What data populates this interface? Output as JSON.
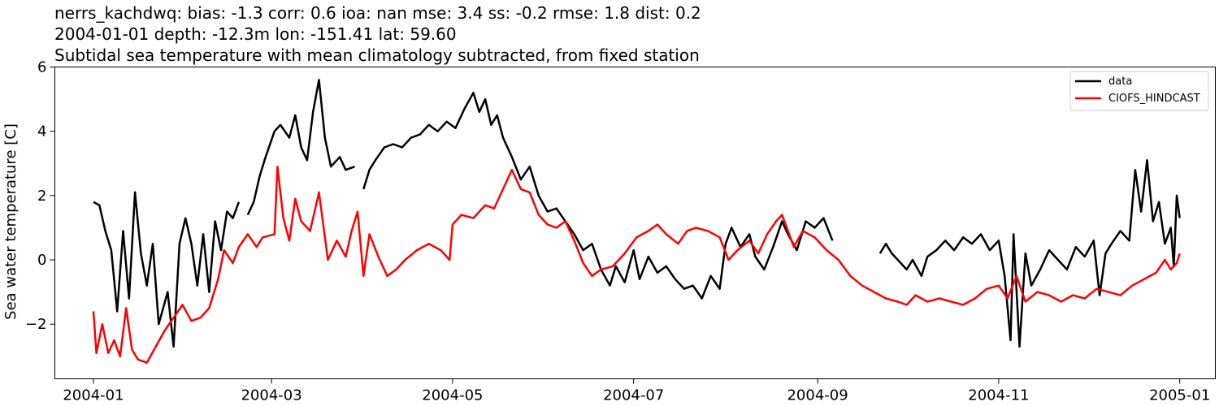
{
  "chart_data": {
    "type": "line",
    "title_lines": [
      "nerrs_kachdwq: bias: -1.3  corr: 0.6  ioa: nan  mse: 3.4  ss: -0.2  rmse: 1.8  dist: 0.2",
      "2004-01-01 depth: -12.3m lon: -151.41 lat: 59.60",
      "Subtidal sea temperature with mean climatology subtracted, from fixed station"
    ],
    "xlabel": "",
    "ylabel": "Sea water temperature [C]",
    "xlim": [
      "2003-12-19",
      "2005-01-13"
    ],
    "ylim": [
      -3.7,
      6.0
    ],
    "x_ticks": [
      "2004-01",
      "2004-03",
      "2004-05",
      "2004-07",
      "2004-09",
      "2004-11",
      "2005-01"
    ],
    "y_ticks": [
      6,
      4,
      2,
      0,
      -2
    ],
    "y_tick_labels": [
      "6",
      "4",
      "2",
      "0",
      "−2"
    ],
    "grid": false,
    "legend_position": "top-right",
    "series": [
      {
        "name": "data",
        "color": "#000000",
        "points": [
          [
            "2004-01-01",
            1.8
          ],
          [
            "2004-01-03",
            1.7
          ],
          [
            "2004-01-05",
            0.9
          ],
          [
            "2004-01-07",
            0.3
          ],
          [
            "2004-01-09",
            -1.6
          ],
          [
            "2004-01-11",
            0.9
          ],
          [
            "2004-01-13",
            -1.2
          ],
          [
            "2004-01-15",
            2.1
          ],
          [
            "2004-01-17",
            0.2
          ],
          [
            "2004-01-19",
            -0.8
          ],
          [
            "2004-01-21",
            0.5
          ],
          [
            "2004-01-23",
            -2.0
          ],
          [
            "2004-01-26",
            -1.0
          ],
          [
            "2004-01-28",
            -2.7
          ],
          [
            "2004-01-30",
            0.5
          ],
          [
            "2004-02-01",
            1.3
          ],
          [
            "2004-02-03",
            0.5
          ],
          [
            "2004-02-05",
            -0.8
          ],
          [
            "2004-02-07",
            0.8
          ],
          [
            "2004-02-09",
            -1.0
          ],
          [
            "2004-02-11",
            1.2
          ],
          [
            "2004-02-13",
            0.3
          ],
          [
            "2004-02-15",
            1.5
          ],
          [
            "2004-02-17",
            1.3
          ],
          [
            "2004-02-19",
            1.8
          ],
          null,
          [
            "2004-02-22",
            1.4
          ],
          [
            "2004-02-24",
            1.8
          ],
          [
            "2004-02-26",
            2.6
          ],
          [
            "2004-02-28",
            3.2
          ],
          [
            "2004-03-02",
            4.0
          ],
          [
            "2004-03-04",
            4.2
          ],
          [
            "2004-03-07",
            3.8
          ],
          [
            "2004-03-09",
            4.5
          ],
          [
            "2004-03-11",
            3.5
          ],
          [
            "2004-03-13",
            3.1
          ],
          [
            "2004-03-15",
            4.6
          ],
          [
            "2004-03-17",
            5.6
          ],
          [
            "2004-03-19",
            3.8
          ],
          [
            "2004-03-21",
            2.9
          ],
          [
            "2004-03-24",
            3.2
          ],
          [
            "2004-03-26",
            2.8
          ],
          [
            "2004-03-29",
            2.9
          ],
          null,
          [
            "2004-04-01",
            2.2
          ],
          [
            "2004-04-03",
            2.8
          ],
          [
            "2004-04-05",
            3.1
          ],
          [
            "2004-04-08",
            3.5
          ],
          [
            "2004-04-11",
            3.6
          ],
          [
            "2004-04-14",
            3.5
          ],
          [
            "2004-04-17",
            3.8
          ],
          [
            "2004-04-20",
            3.9
          ],
          [
            "2004-04-23",
            4.2
          ],
          [
            "2004-04-26",
            4.0
          ],
          [
            "2004-04-29",
            4.3
          ],
          [
            "2004-05-02",
            4.1
          ],
          [
            "2004-05-05",
            4.7
          ],
          [
            "2004-05-08",
            5.2
          ],
          [
            "2004-05-10",
            4.6
          ],
          [
            "2004-05-12",
            5.0
          ],
          [
            "2004-05-14",
            4.2
          ],
          [
            "2004-05-16",
            4.5
          ],
          [
            "2004-05-18",
            3.8
          ],
          [
            "2004-05-21",
            3.2
          ],
          [
            "2004-05-24",
            2.5
          ],
          [
            "2004-05-27",
            2.9
          ],
          [
            "2004-05-30",
            2.0
          ],
          [
            "2004-06-02",
            1.5
          ],
          [
            "2004-06-05",
            1.6
          ],
          [
            "2004-06-08",
            1.2
          ],
          [
            "2004-06-11",
            0.8
          ],
          [
            "2004-06-14",
            0.3
          ],
          [
            "2004-06-17",
            0.5
          ],
          [
            "2004-06-20",
            -0.3
          ],
          [
            "2004-06-23",
            -0.8
          ],
          [
            "2004-06-25",
            -0.2
          ],
          [
            "2004-06-28",
            -0.7
          ],
          [
            "2004-07-01",
            0.3
          ],
          [
            "2004-07-03",
            -0.6
          ],
          [
            "2004-07-06",
            0.1
          ],
          [
            "2004-07-09",
            -0.4
          ],
          [
            "2004-07-12",
            -0.2
          ],
          [
            "2004-07-15",
            -0.6
          ],
          [
            "2004-07-18",
            -0.9
          ],
          [
            "2004-07-21",
            -0.8
          ],
          [
            "2004-07-24",
            -1.2
          ],
          [
            "2004-07-27",
            -0.5
          ],
          [
            "2004-07-30",
            -0.9
          ],
          [
            "2004-08-01",
            0.5
          ],
          [
            "2004-08-03",
            1.0
          ],
          [
            "2004-08-06",
            0.4
          ],
          [
            "2004-08-09",
            0.8
          ],
          [
            "2004-08-11",
            0.1
          ],
          [
            "2004-08-14",
            -0.3
          ],
          [
            "2004-08-17",
            0.4
          ],
          [
            "2004-08-20",
            1.2
          ],
          [
            "2004-08-22",
            0.8
          ],
          [
            "2004-08-25",
            0.3
          ],
          [
            "2004-08-28",
            1.2
          ],
          [
            "2004-08-31",
            1.0
          ],
          [
            "2004-09-03",
            1.3
          ],
          [
            "2004-09-06",
            0.6
          ],
          null,
          [
            "2004-09-22",
            0.2
          ],
          [
            "2004-09-24",
            0.5
          ],
          [
            "2004-09-26",
            0.2
          ],
          [
            "2004-09-28",
            0.0
          ],
          [
            "2004-10-01",
            -0.3
          ],
          [
            "2004-10-03",
            0.0
          ],
          [
            "2004-10-06",
            -0.5
          ],
          [
            "2004-10-08",
            0.1
          ],
          [
            "2004-10-11",
            0.3
          ],
          [
            "2004-10-14",
            0.6
          ],
          [
            "2004-10-17",
            0.3
          ],
          [
            "2004-10-20",
            0.7
          ],
          [
            "2004-10-23",
            0.5
          ],
          [
            "2004-10-26",
            0.8
          ],
          [
            "2004-10-29",
            0.3
          ],
          [
            "2004-11-01",
            0.6
          ],
          [
            "2004-11-03",
            -0.5
          ],
          [
            "2004-11-05",
            -2.5
          ],
          [
            "2004-11-06",
            0.8
          ],
          [
            "2004-11-08",
            -2.7
          ],
          [
            "2004-11-10",
            0.2
          ],
          [
            "2004-11-12",
            -0.8
          ],
          [
            "2004-11-15",
            -0.3
          ],
          [
            "2004-11-18",
            0.3
          ],
          [
            "2004-11-21",
            0.0
          ],
          [
            "2004-11-24",
            -0.3
          ],
          [
            "2004-11-27",
            0.4
          ],
          [
            "2004-11-30",
            0.1
          ],
          [
            "2004-12-03",
            0.6
          ],
          [
            "2004-12-05",
            -1.1
          ],
          [
            "2004-12-07",
            0.2
          ],
          [
            "2004-12-09",
            0.5
          ],
          [
            "2004-12-12",
            0.9
          ],
          [
            "2004-12-15",
            0.6
          ],
          [
            "2004-12-17",
            2.8
          ],
          [
            "2004-12-19",
            1.5
          ],
          [
            "2004-12-21",
            3.1
          ],
          [
            "2004-12-23",
            1.2
          ],
          [
            "2004-12-25",
            1.8
          ],
          [
            "2004-12-27",
            0.5
          ],
          [
            "2004-12-29",
            1.0
          ],
          [
            "2004-12-30",
            -0.2
          ],
          [
            "2004-12-31",
            2.0
          ],
          [
            "2005-01-01",
            1.3
          ]
        ]
      },
      {
        "name": "CIOFS_HINDCAST",
        "color": "#ff0000",
        "points": [
          [
            "2004-01-01",
            -1.6
          ],
          [
            "2004-01-02",
            -2.9
          ],
          [
            "2004-01-04",
            -2.0
          ],
          [
            "2004-01-06",
            -2.9
          ],
          [
            "2004-01-08",
            -2.5
          ],
          [
            "2004-01-10",
            -3.0
          ],
          [
            "2004-01-12",
            -1.5
          ],
          [
            "2004-01-14",
            -2.8
          ],
          [
            "2004-01-16",
            -3.1
          ],
          [
            "2004-01-19",
            -3.2
          ],
          [
            "2004-01-22",
            -2.7
          ],
          [
            "2004-01-25",
            -2.2
          ],
          [
            "2004-01-28",
            -1.8
          ],
          [
            "2004-01-31",
            -1.4
          ],
          [
            "2004-02-03",
            -1.9
          ],
          [
            "2004-02-06",
            -1.8
          ],
          [
            "2004-02-09",
            -1.5
          ],
          [
            "2004-02-12",
            -0.6
          ],
          [
            "2004-02-14",
            0.3
          ],
          [
            "2004-02-17",
            -0.1
          ],
          [
            "2004-02-19",
            0.4
          ],
          [
            "2004-02-22",
            0.8
          ],
          [
            "2004-02-25",
            0.4
          ],
          [
            "2004-02-27",
            0.7
          ],
          [
            "2004-03-02",
            0.8
          ],
          [
            "2004-03-03",
            2.9
          ],
          [
            "2004-03-05",
            1.3
          ],
          [
            "2004-03-07",
            0.6
          ],
          [
            "2004-03-09",
            1.9
          ],
          [
            "2004-03-11",
            1.2
          ],
          [
            "2004-03-14",
            0.9
          ],
          [
            "2004-03-17",
            2.1
          ],
          [
            "2004-03-20",
            0.0
          ],
          [
            "2004-03-23",
            0.6
          ],
          [
            "2004-03-26",
            0.1
          ],
          [
            "2004-03-28",
            0.9
          ],
          [
            "2004-03-30",
            1.5
          ],
          [
            "2004-04-01",
            -0.5
          ],
          [
            "2004-04-03",
            0.8
          ],
          [
            "2004-04-06",
            0.1
          ],
          [
            "2004-04-09",
            -0.5
          ],
          [
            "2004-04-12",
            -0.3
          ],
          [
            "2004-04-15",
            0.0
          ],
          [
            "2004-04-19",
            0.3
          ],
          [
            "2004-04-23",
            0.5
          ],
          [
            "2004-04-27",
            0.3
          ],
          [
            "2004-04-30",
            0.0
          ],
          [
            "2004-05-01",
            1.1
          ],
          [
            "2004-05-04",
            1.4
          ],
          [
            "2004-05-08",
            1.3
          ],
          [
            "2004-05-12",
            1.7
          ],
          [
            "2004-05-15",
            1.6
          ],
          [
            "2004-05-18",
            2.2
          ],
          [
            "2004-05-21",
            2.8
          ],
          [
            "2004-05-24",
            2.2
          ],
          [
            "2004-05-27",
            2.1
          ],
          [
            "2004-05-30",
            1.4
          ],
          [
            "2004-06-02",
            1.1
          ],
          [
            "2004-06-05",
            1.0
          ],
          [
            "2004-06-08",
            1.2
          ],
          [
            "2004-06-11",
            0.6
          ],
          [
            "2004-06-14",
            -0.1
          ],
          [
            "2004-06-17",
            -0.5
          ],
          [
            "2004-06-20",
            -0.3
          ],
          [
            "2004-06-24",
            -0.2
          ],
          [
            "2004-06-28",
            0.2
          ],
          [
            "2004-07-02",
            0.7
          ],
          [
            "2004-07-06",
            0.9
          ],
          [
            "2004-07-09",
            1.1
          ],
          [
            "2004-07-12",
            0.8
          ],
          [
            "2004-07-16",
            0.5
          ],
          [
            "2004-07-19",
            0.9
          ],
          [
            "2004-07-22",
            1.0
          ],
          [
            "2004-07-26",
            0.9
          ],
          [
            "2004-07-30",
            0.7
          ],
          [
            "2004-08-02",
            0.0
          ],
          [
            "2004-08-05",
            0.3
          ],
          [
            "2004-08-09",
            0.6
          ],
          [
            "2004-08-12",
            0.2
          ],
          [
            "2004-08-15",
            0.8
          ],
          [
            "2004-08-18",
            1.2
          ],
          [
            "2004-08-20",
            1.4
          ],
          [
            "2004-08-24",
            0.4
          ],
          [
            "2004-08-27",
            0.9
          ],
          [
            "2004-08-31",
            0.7
          ],
          [
            "2004-09-04",
            0.3
          ],
          [
            "2004-09-08",
            0.0
          ],
          [
            "2004-09-12",
            -0.5
          ],
          [
            "2004-09-16",
            -0.8
          ],
          [
            "2004-09-20",
            -1.0
          ],
          [
            "2004-09-24",
            -1.2
          ],
          [
            "2004-09-28",
            -1.3
          ],
          [
            "2004-10-01",
            -1.4
          ],
          [
            "2004-10-04",
            -1.1
          ],
          [
            "2004-10-08",
            -1.3
          ],
          [
            "2004-10-12",
            -1.2
          ],
          [
            "2004-10-16",
            -1.3
          ],
          [
            "2004-10-20",
            -1.4
          ],
          [
            "2004-10-24",
            -1.2
          ],
          [
            "2004-10-28",
            -0.9
          ],
          [
            "2004-11-01",
            -0.8
          ],
          [
            "2004-11-04",
            -1.2
          ],
          [
            "2004-11-07",
            -0.5
          ],
          [
            "2004-11-10",
            -1.3
          ],
          [
            "2004-11-14",
            -1.0
          ],
          [
            "2004-11-18",
            -1.1
          ],
          [
            "2004-11-22",
            -1.3
          ],
          [
            "2004-11-26",
            -1.1
          ],
          [
            "2004-11-30",
            -1.2
          ],
          [
            "2004-12-04",
            -0.9
          ],
          [
            "2004-12-08",
            -1.0
          ],
          [
            "2004-12-12",
            -1.1
          ],
          [
            "2004-12-16",
            -0.8
          ],
          [
            "2004-12-20",
            -0.6
          ],
          [
            "2004-12-24",
            -0.4
          ],
          [
            "2004-12-27",
            0.0
          ],
          [
            "2004-12-29",
            -0.3
          ],
          [
            "2004-12-31",
            -0.1
          ],
          [
            "2005-01-01",
            0.2
          ]
        ]
      }
    ]
  }
}
